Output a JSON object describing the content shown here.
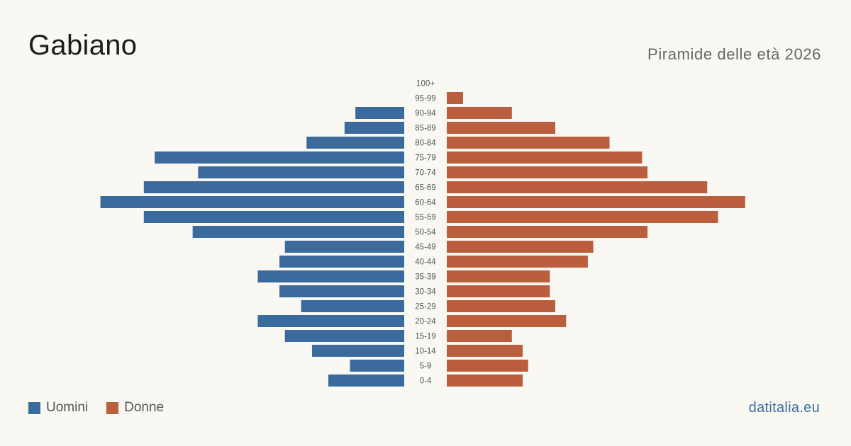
{
  "title": "Gabiano",
  "subtitle": "Piramide delle età 2026",
  "brand": "datitalia.eu",
  "colors": {
    "men": "#3b6b9c",
    "women": "#bb5e3e"
  },
  "chart_data": {
    "type": "bar",
    "orientation": "horizontal-pyramid",
    "categories": [
      "100+",
      "95-99",
      "90-94",
      "85-89",
      "80-84",
      "75-79",
      "70-74",
      "65-69",
      "60-64",
      "55-59",
      "50-54",
      "45-49",
      "40-44",
      "35-39",
      "30-34",
      "25-29",
      "20-24",
      "15-19",
      "10-14",
      "5-9",
      "0-4"
    ],
    "series": [
      {
        "name": "Uomini",
        "values": [
          0,
          0,
          9,
          11,
          18,
          46,
          38,
          48,
          56,
          48,
          39,
          22,
          23,
          27,
          23,
          19,
          27,
          22,
          17,
          10,
          14
        ]
      },
      {
        "name": "Donne",
        "values": [
          0,
          3,
          12,
          20,
          30,
          36,
          37,
          48,
          55,
          50,
          37,
          27,
          26,
          19,
          19,
          20,
          22,
          12,
          14,
          15,
          14
        ]
      }
    ],
    "legend": "bottom-left"
  }
}
